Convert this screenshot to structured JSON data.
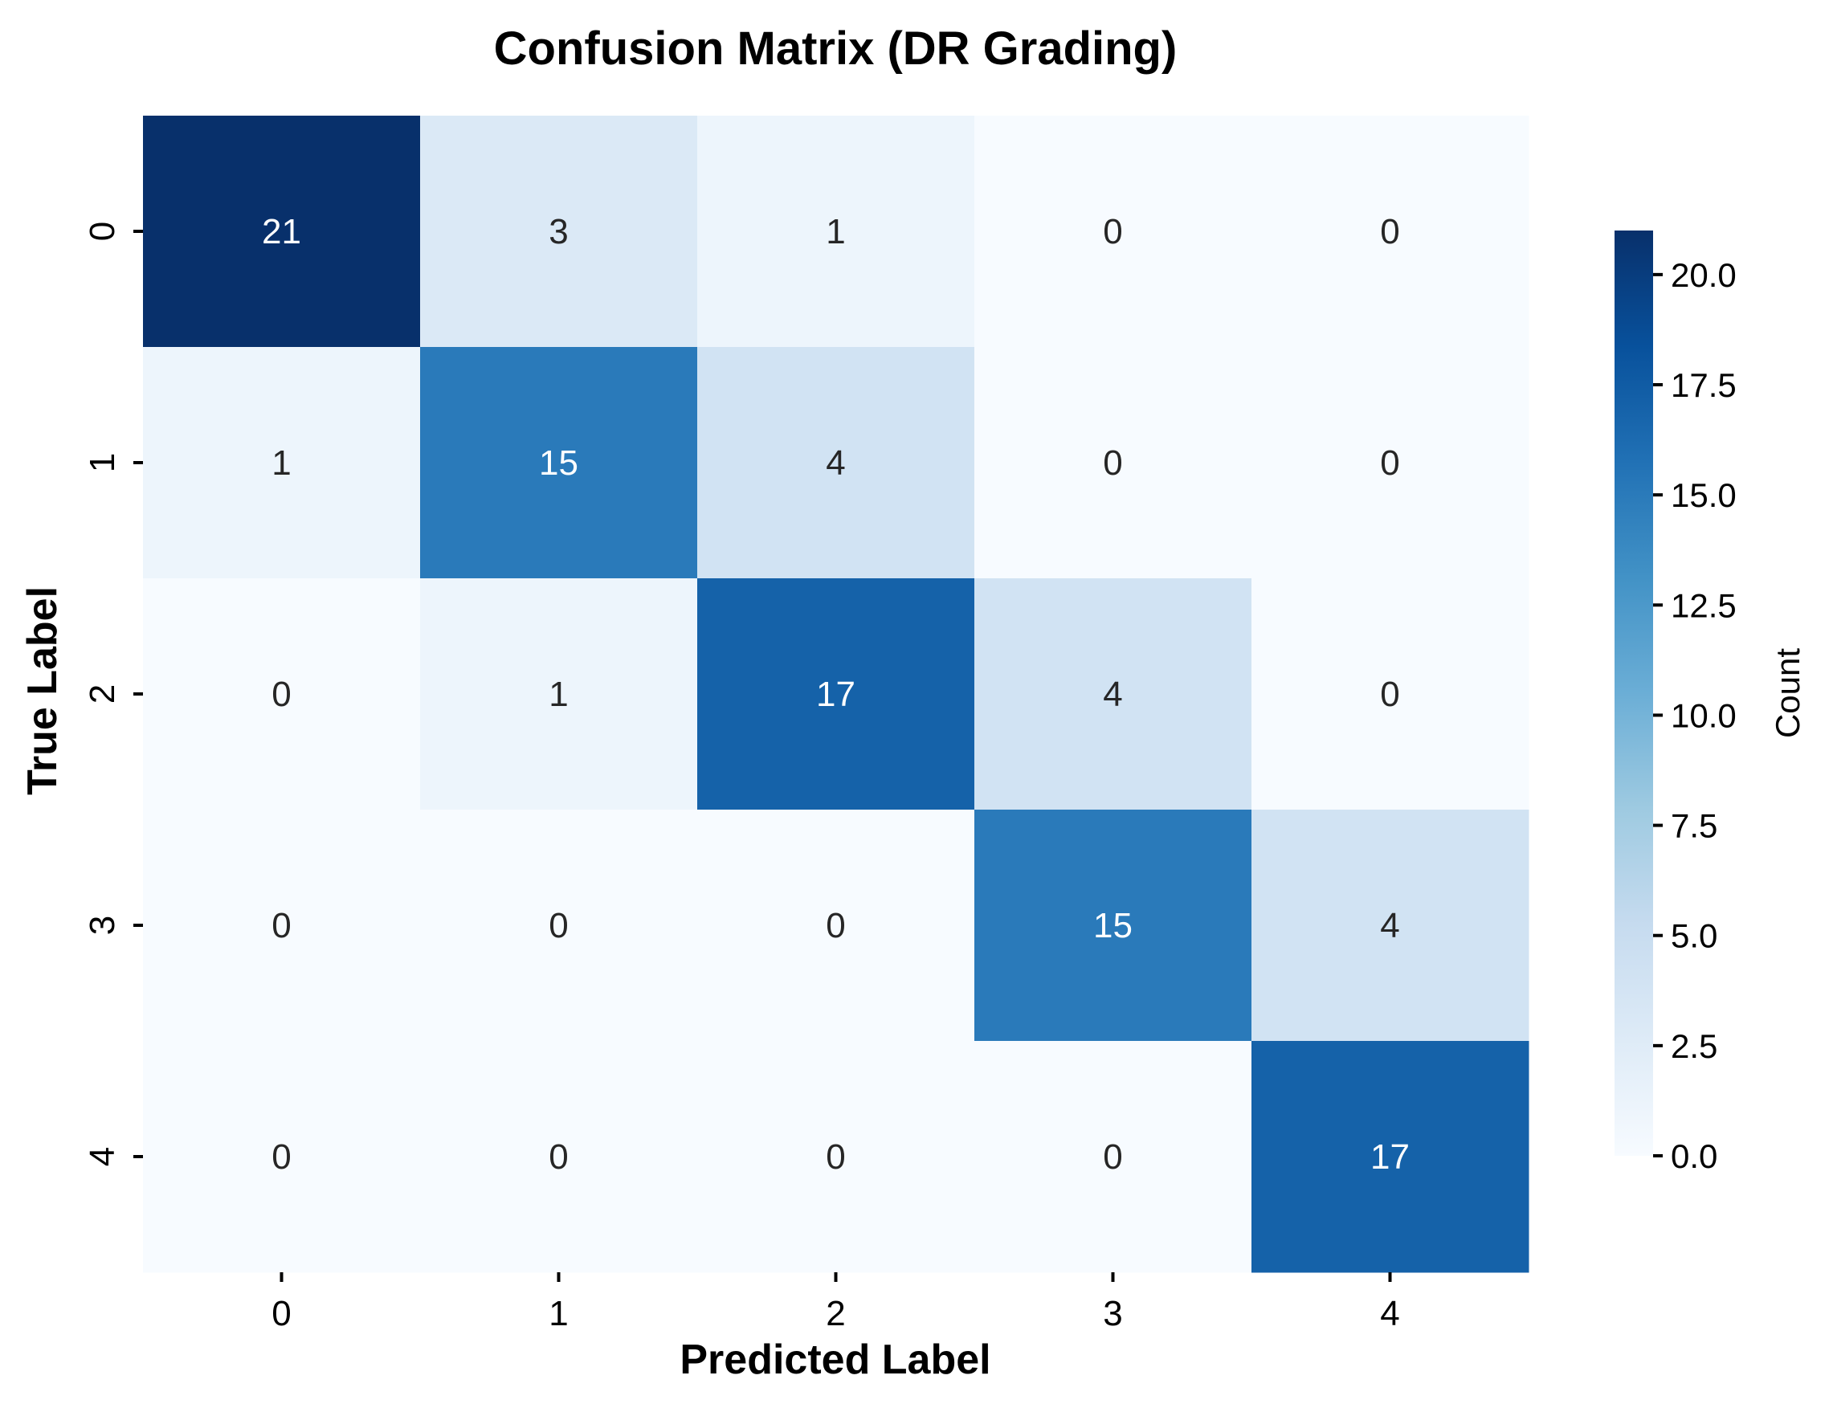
{
  "chart_data": {
    "type": "heatmap",
    "title": "Confusion Matrix (DR Grading)",
    "xlabel": "Predicted Label",
    "ylabel": "True Label",
    "x_categories": [
      "0",
      "1",
      "2",
      "3",
      "4"
    ],
    "y_categories": [
      "0",
      "1",
      "2",
      "3",
      "4"
    ],
    "values": [
      [
        21,
        3,
        1,
        0,
        0
      ],
      [
        1,
        15,
        4,
        0,
        0
      ],
      [
        0,
        1,
        17,
        4,
        0
      ],
      [
        0,
        0,
        0,
        15,
        4
      ],
      [
        0,
        0,
        0,
        0,
        17
      ]
    ],
    "colormap": "Blues",
    "color_range": [
      0,
      21
    ],
    "colorbar": {
      "label": "Count",
      "ticks": [
        "0.0",
        "2.5",
        "5.0",
        "7.5",
        "10.0",
        "12.5",
        "15.0",
        "17.5",
        "20.0"
      ]
    },
    "colors": {
      "low": "#f7fbff",
      "high": "#08306b",
      "text_dark": "#262626",
      "text_light": "#ffffff"
    }
  }
}
